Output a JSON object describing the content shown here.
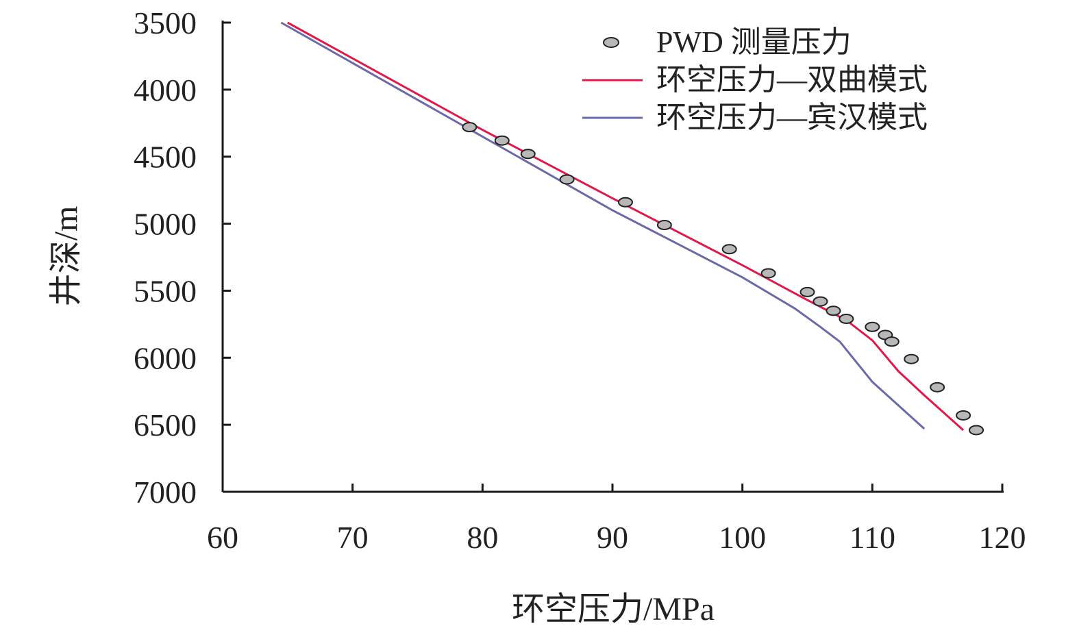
{
  "chart_data": {
    "type": "line",
    "title": "",
    "xlabel": "环空压力/MPa",
    "ylabel": "井深/m",
    "xlim": [
      60,
      120
    ],
    "ylim": [
      3500,
      7000
    ],
    "y_inverted": true,
    "grid": false,
    "legend_position": "top-right",
    "x_ticks": [
      60,
      70,
      80,
      90,
      100,
      110,
      120
    ],
    "y_ticks": [
      3500,
      4000,
      4500,
      5000,
      5500,
      6000,
      6500,
      7000
    ],
    "colors": {
      "pwd": "#b8b8b8",
      "hyperbolic": "#e0194b",
      "bingham": "#6a6aa8",
      "axis": "#1a1a1a"
    },
    "series": [
      {
        "name": "PWD 测量压力",
        "kind": "scatter",
        "points": [
          {
            "x": 79.0,
            "y": 4280
          },
          {
            "x": 81.5,
            "y": 4380
          },
          {
            "x": 83.5,
            "y": 4480
          },
          {
            "x": 86.5,
            "y": 4670
          },
          {
            "x": 91.0,
            "y": 4840
          },
          {
            "x": 94.0,
            "y": 5010
          },
          {
            "x": 99.0,
            "y": 5190
          },
          {
            "x": 102.0,
            "y": 5370
          },
          {
            "x": 105.0,
            "y": 5510
          },
          {
            "x": 106.0,
            "y": 5580
          },
          {
            "x": 107.0,
            "y": 5650
          },
          {
            "x": 108.0,
            "y": 5710
          },
          {
            "x": 110.0,
            "y": 5770
          },
          {
            "x": 111.0,
            "y": 5830
          },
          {
            "x": 111.5,
            "y": 5880
          },
          {
            "x": 113.0,
            "y": 6010
          },
          {
            "x": 115.0,
            "y": 6220
          },
          {
            "x": 117.0,
            "y": 6430
          },
          {
            "x": 118.0,
            "y": 6540
          }
        ]
      },
      {
        "name": "环空压力—双曲模式",
        "kind": "line",
        "points": [
          {
            "x": 65.0,
            "y": 3500
          },
          {
            "x": 80.0,
            "y": 4300
          },
          {
            "x": 90.0,
            "y": 4810
          },
          {
            "x": 100.0,
            "y": 5310
          },
          {
            "x": 105.0,
            "y": 5570
          },
          {
            "x": 108.0,
            "y": 5720
          },
          {
            "x": 110.0,
            "y": 5870
          },
          {
            "x": 112.0,
            "y": 6100
          },
          {
            "x": 114.0,
            "y": 6280
          },
          {
            "x": 117.0,
            "y": 6540
          }
        ]
      },
      {
        "name": "环空压力—宾汉模式",
        "kind": "line",
        "points": [
          {
            "x": 64.5,
            "y": 3500
          },
          {
            "x": 80.0,
            "y": 4350
          },
          {
            "x": 90.0,
            "y": 4900
          },
          {
            "x": 100.0,
            "y": 5400
          },
          {
            "x": 104.0,
            "y": 5630
          },
          {
            "x": 106.0,
            "y": 5770
          },
          {
            "x": 107.5,
            "y": 5880
          },
          {
            "x": 110.0,
            "y": 6180
          },
          {
            "x": 114.0,
            "y": 6530
          }
        ]
      }
    ]
  }
}
